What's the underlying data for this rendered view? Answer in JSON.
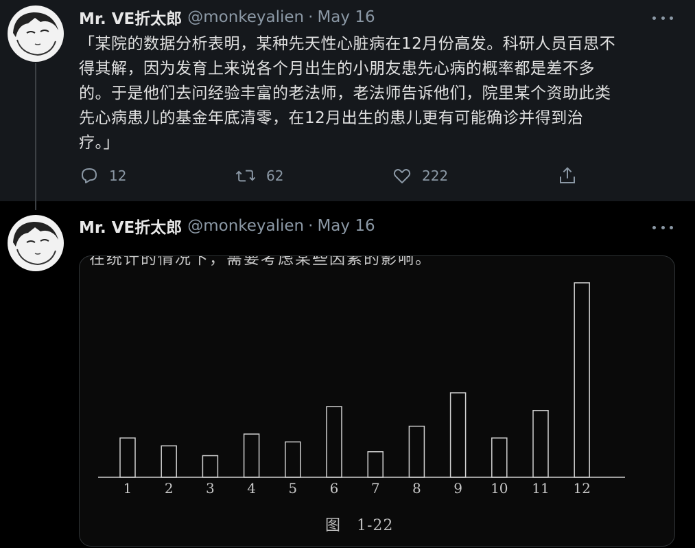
{
  "tweet1": {
    "author_name": "Mr. VE折太郎",
    "handle": "@monkeyalien",
    "separator": "·",
    "date": "May 16",
    "text_lines": [
      "「某院的数据分析表明，某种先天性心脏病在12月份高发。科研人员百思不",
      "得其解，因为发育上来说各个月出生的小朋友患先心病的概率都是差不多",
      "的。于是他们去问经验丰富的老法师，老法师告诉他们，院里某个资助此类",
      "先心病患儿的基金年底清零，在12月出生的患儿更有可能确诊并得到治",
      "疗。」"
    ],
    "actions": {
      "reply_count": "12",
      "retweet_count": "62",
      "like_count": "222"
    }
  },
  "tweet2": {
    "author_name": "Mr. VE折太郎",
    "handle": "@monkeyalien",
    "separator": "·",
    "date": "May 16",
    "media": {
      "top_cut_text": "在统计的情况下，需要考虑某些因素的影响。",
      "caption": "图　1-22"
    }
  },
  "colors": {
    "tweet1_bg": "#15181c",
    "tweet2_bg": "#000000",
    "muted": "#8b98a5",
    "text": "#e0e0e0"
  },
  "icons": [
    "reply-icon",
    "retweet-icon",
    "like-icon",
    "share-icon",
    "more-icon"
  ],
  "chart_data": {
    "type": "bar",
    "categories": [
      "1",
      "2",
      "3",
      "4",
      "5",
      "6",
      "7",
      "8",
      "9",
      "10",
      "11",
      "12"
    ],
    "values": [
      20,
      16,
      11,
      22,
      18,
      36,
      13,
      26,
      43,
      20,
      34,
      99
    ],
    "title": "",
    "xlabel": "",
    "ylabel": "",
    "ylim": [
      0,
      100
    ]
  }
}
